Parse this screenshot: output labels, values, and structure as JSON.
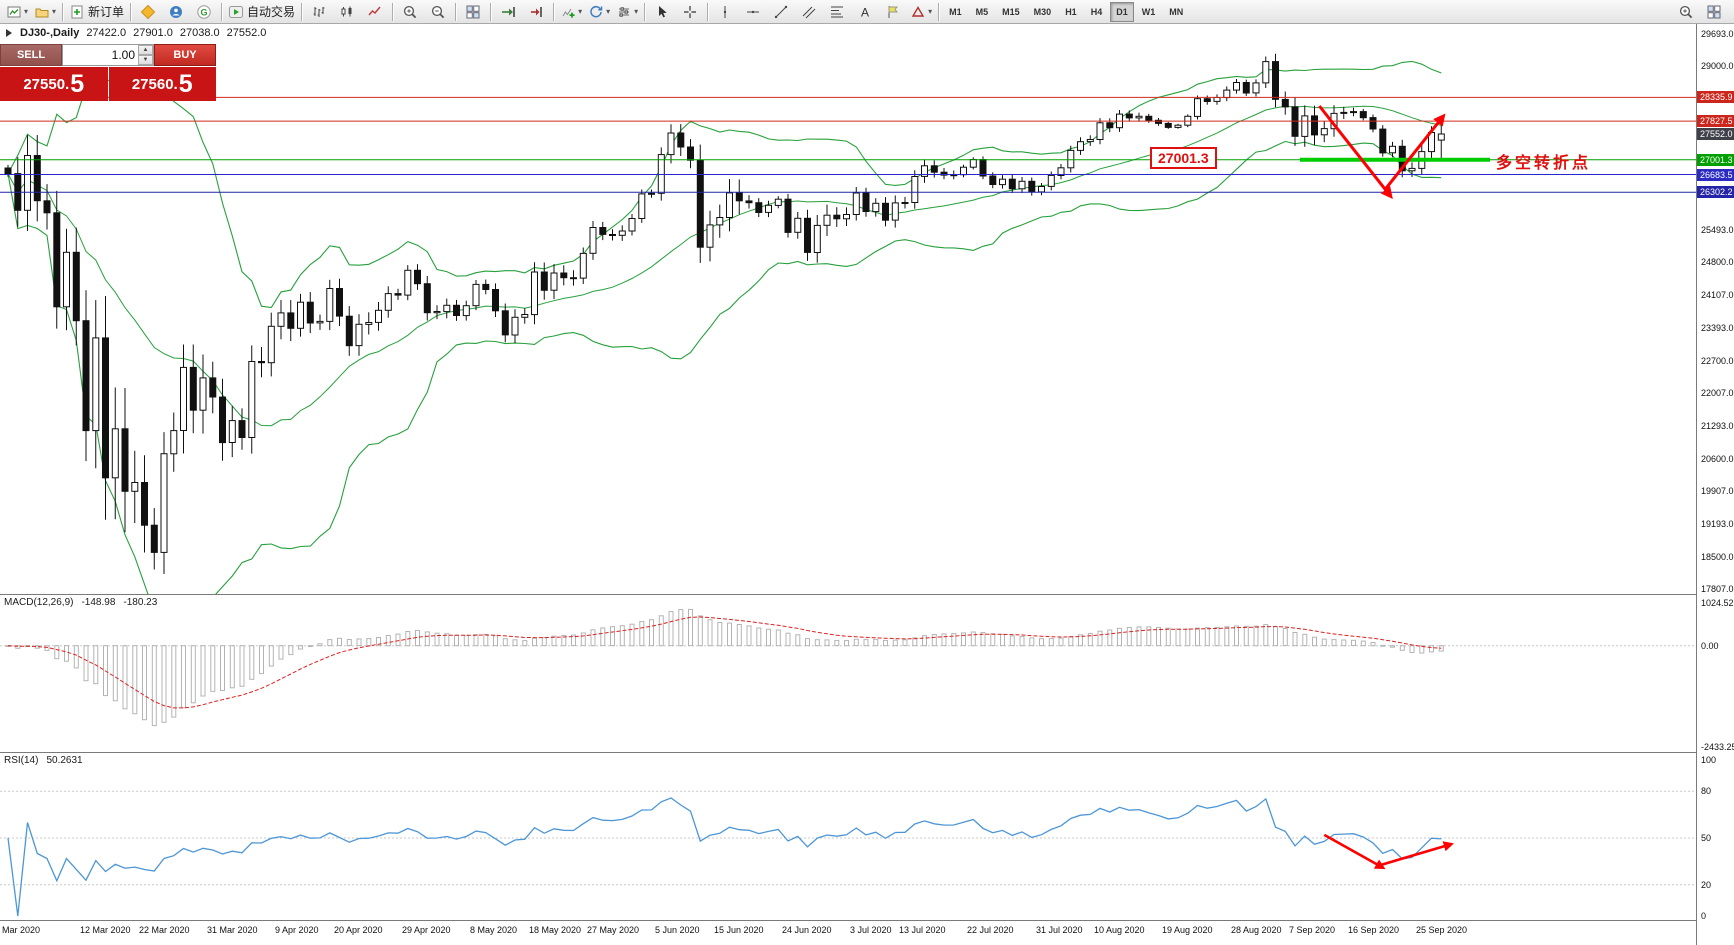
{
  "icons": {
    "caret": "▾",
    "spinner_up": "▲",
    "spinner_down": "▼"
  },
  "toolbar": {
    "timeframes": [
      "M1",
      "M5",
      "M15",
      "M30",
      "H1",
      "H4",
      "D1",
      "W1",
      "MN"
    ],
    "active_timeframe": "D1",
    "groups": [
      {
        "items": [
          {
            "name": "new-chart",
            "icon": "newchart",
            "caret": true
          },
          {
            "name": "chart-profiles",
            "icon": "profiles",
            "caret": true
          }
        ]
      },
      {
        "items": [
          {
            "name": "new-order",
            "icon": "neworder",
            "label": "新订单"
          }
        ]
      },
      {
        "items": [
          {
            "name": "market",
            "icon": "market"
          },
          {
            "name": "community",
            "icon": "community"
          },
          {
            "name": "web-search",
            "icon": "gsearch"
          }
        ]
      },
      {
        "items": [
          {
            "name": "auto-trading",
            "icon": "autotrade",
            "label": "自动交易"
          }
        ]
      },
      {
        "items": [
          {
            "name": "bar-chart-mode",
            "icon": "bars"
          },
          {
            "name": "candlestick-mode",
            "icon": "candles"
          },
          {
            "name": "line-chart-mode",
            "icon": "linechart"
          }
        ]
      },
      {
        "items": [
          {
            "name": "zoom-in",
            "icon": "zoomin"
          },
          {
            "name": "zoom-out",
            "icon": "zoomout"
          }
        ]
      },
      {
        "items": [
          {
            "name": "tile-windows",
            "icon": "tile"
          }
        ]
      },
      {
        "items": [
          {
            "name": "auto-scroll",
            "icon": "autoscroll"
          },
          {
            "name": "chart-shift",
            "icon": "shift"
          }
        ]
      },
      {
        "items": [
          {
            "name": "indicators-list",
            "icon": "indadd",
            "caret": true
          },
          {
            "name": "periods-cycles",
            "icon": "cycles",
            "caret": true
          },
          {
            "name": "chart-properties",
            "icon": "settings",
            "caret": true
          }
        ]
      },
      {
        "items": [
          {
            "name": "cursor",
            "icon": "cursor"
          },
          {
            "name": "crosshair",
            "icon": "crosshair"
          }
        ]
      },
      {
        "items": [
          {
            "name": "vertical-line",
            "icon": "vline"
          },
          {
            "name": "horizontal-line",
            "icon": "hline"
          },
          {
            "name": "trendline",
            "icon": "tline"
          },
          {
            "name": "equidistant-channel",
            "icon": "channel"
          },
          {
            "name": "fibonacci-retracement",
            "icon": "fibo"
          },
          {
            "name": "text-tool",
            "icon": "textA"
          },
          {
            "name": "text-label-tool",
            "icon": "label"
          },
          {
            "name": "arrow-tools",
            "icon": "shapes",
            "caret": true
          }
        ]
      },
      {
        "timeframes": true,
        "items": []
      },
      {
        "right": true,
        "items": [
          {
            "name": "symbol-search",
            "icon": "zoomin"
          },
          {
            "name": "window-layout",
            "icon": "tile"
          }
        ]
      }
    ]
  },
  "chart_header": {
    "symbol_period": "DJ30-,Daily",
    "open": "27422.0",
    "high": "27901.0",
    "low": "27038.0",
    "close": "27552.0"
  },
  "trade_panel": {
    "sell_label": "SELL",
    "buy_label": "BUY",
    "volume": "1.00",
    "sell_price": "27550.",
    "sell_price_big": "5",
    "buy_price": "27560.",
    "buy_price_big": "5",
    "price_bg": "#c81414"
  },
  "price_axis": {
    "ticks": [
      {
        "text": "29693.0",
        "v": 29693.0
      },
      {
        "text": "29000.0",
        "v": 29000.0
      },
      {
        "text": "25493.0",
        "v": 25493.0
      },
      {
        "text": "24800.0",
        "v": 24800.0
      },
      {
        "text": "24107.0",
        "v": 24107.0
      },
      {
        "text": "23393.0",
        "v": 23393.0
      },
      {
        "text": "22700.0",
        "v": 22700.0
      },
      {
        "text": "22007.0",
        "v": 22007.0
      },
      {
        "text": "21293.0",
        "v": 21293.0
      },
      {
        "text": "20600.0",
        "v": 20600.0
      },
      {
        "text": "19907.0",
        "v": 19907.0
      },
      {
        "text": "19193.0",
        "v": 19193.0
      },
      {
        "text": "18500.0",
        "v": 18500.0
      },
      {
        "text": "17807.0",
        "v": 17807.0
      }
    ],
    "badges": [
      {
        "text": "28335.9",
        "v": 28335.9,
        "bg": "#cc261c"
      },
      {
        "text": "27827.5",
        "v": 27827.5,
        "bg": "#cc261c"
      },
      {
        "text": "27552.0",
        "v": 27552.0,
        "bg": "#40404a"
      },
      {
        "text": "27001.3",
        "v": 27001.3,
        "bg": "#00a000"
      },
      {
        "text": "26683.5",
        "v": 26683.5,
        "bg": "#2b2bc4"
      },
      {
        "text": "26302.2",
        "v": 26302.2,
        "bg": "#2424a8"
      }
    ]
  },
  "macd": {
    "title": "MACD(12,26,9)",
    "value_main": "-148.98",
    "value_signal": "-180.23",
    "params": {
      "fast": 12,
      "slow": 26,
      "signal": 9
    },
    "axis": [
      {
        "text": "1024.52",
        "v": 1024.52
      },
      {
        "text": "0.00",
        "v": 0
      },
      {
        "text": "-2433.25",
        "v": -2433.25
      }
    ]
  },
  "rsi": {
    "title": "RSI(14)",
    "value": "50.2631",
    "period": 14,
    "levels": [
      80,
      50,
      20
    ],
    "axis": [
      {
        "text": "100",
        "v": 100
      },
      {
        "text": "80",
        "v": 80
      },
      {
        "text": "50",
        "v": 50
      },
      {
        "text": "20",
        "v": 20
      },
      {
        "text": "0",
        "v": 0
      }
    ]
  },
  "annotations": {
    "level_label": "27001.3",
    "turning_text": "多空转折点",
    "arrow_color": "#ff0000",
    "thick_segment": {
      "price": 27001.3,
      "i1": 132.5,
      "i2": 152,
      "color": "#00cc00"
    },
    "main_arrows": [
      [
        [
          134.5,
          28150
        ],
        [
          141.8,
          26220
        ]
      ],
      [
        [
          141.3,
          26380
        ],
        [
          147.2,
          27930
        ]
      ]
    ],
    "rsi_arrows": [
      [
        [
          135,
          52
        ],
        [
          141,
          31
        ]
      ],
      [
        [
          140.4,
          32
        ],
        [
          148,
          46
        ]
      ]
    ]
  },
  "colors": {
    "bands": "#27a03c",
    "candle": "#111111",
    "macd_signal": "#e02020",
    "macd_hist": "#b4b4b4",
    "rsi_line": "#4d96d6",
    "grid_dotted": "#c8c8c8"
  },
  "time_axis": [
    {
      "text": "Mar 2020",
      "i": 0
    },
    {
      "text": "12 Mar 2020",
      "i": 8
    },
    {
      "text": "22 Mar 2020",
      "i": 14
    },
    {
      "text": "31 Mar 2020",
      "i": 21
    },
    {
      "text": "9 Apr 2020",
      "i": 28
    },
    {
      "text": "20 Apr 2020",
      "i": 34
    },
    {
      "text": "29 Apr 2020",
      "i": 41
    },
    {
      "text": "8 May 2020",
      "i": 48
    },
    {
      "text": "18 May 2020",
      "i": 54
    },
    {
      "text": "27 May 2020",
      "i": 60
    },
    {
      "text": "5 Jun 2020",
      "i": 67
    },
    {
      "text": "15 Jun 2020",
      "i": 73
    },
    {
      "text": "24 Jun 2020",
      "i": 80
    },
    {
      "text": "3 Jul 2020",
      "i": 87
    },
    {
      "text": "13 Jul 2020",
      "i": 92
    },
    {
      "text": "22 Jul 2020",
      "i": 99
    },
    {
      "text": "31 Jul 2020",
      "i": 106
    },
    {
      "text": "10 Aug 2020",
      "i": 112
    },
    {
      "text": "19 Aug 2020",
      "i": 119
    },
    {
      "text": "28 Aug 2020",
      "i": 126
    },
    {
      "text": "7 Sep 2020",
      "i": 132
    },
    {
      "text": "16 Sep 2020",
      "i": 138
    },
    {
      "text": "25 Sep 2020",
      "i": 145
    }
  ],
  "chart_data": {
    "type": "candlestick",
    "symbol": "DJ30-",
    "period": "Daily",
    "visible_price_range": {
      "top": 29693.0,
      "bottom": 17807.0
    },
    "last_candle": {
      "open": 27422.0,
      "high": 27901.0,
      "low": 27038.0,
      "close": 27552.0
    },
    "levels": [
      {
        "price": 28335.9,
        "color": "#d22a1e"
      },
      {
        "price": 27827.5,
        "color": "#d22a1e"
      },
      {
        "price": 27001.3,
        "color": "#00a000"
      },
      {
        "price": 26683.5,
        "color": "#2626cc"
      },
      {
        "price": 26302.2,
        "color": "#2222aa"
      }
    ],
    "indicators": [
      "Bollinger Bands(20,2)",
      "MACD(12,26,9)",
      "RSI(14)"
    ],
    "closes": [
      26703,
      25917,
      27090,
      26121,
      25864,
      23851,
      25018,
      23553,
      21200,
      23185,
      20188,
      21237,
      19898,
      20087,
      19173,
      18591,
      20704,
      21200,
      22552,
      21636,
      22327,
      21917,
      20943,
      21413,
      21052,
      22679,
      22653,
      23433,
      23719,
      23390,
      23949,
      23504,
      23537,
      24242,
      23650,
      23018,
      23475,
      23515,
      23775,
      24133,
      24101,
      24633,
      24345,
      23723,
      23749,
      23883,
      23664,
      23875,
      24331,
      24221,
      23764,
      23247,
      23625,
      23685,
      24597,
      24206,
      24575,
      24474,
      24465,
      24995,
      25548,
      25400,
      25383,
      25475,
      25742,
      26269,
      26281,
      27110,
      27572,
      27272,
      26989,
      25128,
      25605,
      25763,
      26289,
      26119,
      26080,
      25871,
      26024,
      26156,
      25445,
      25745,
      25015,
      25595,
      25812,
      25734,
      25827,
      26287,
      25890,
      26067,
      25706,
      26075,
      26085,
      26642,
      26870,
      26734,
      26671,
      26680,
      26840,
      27005,
      26652,
      26469,
      26584,
      26379,
      26539,
      26313,
      26428,
      26664,
      26828,
      27201,
      27387,
      27433,
      27791,
      27686,
      27977,
      27896,
      27931,
      27844,
      27778,
      27693,
      27740,
      27930,
      28308,
      28248,
      28332,
      28492,
      28654,
      28430,
      28645,
      29101,
      28293,
      28133,
      27501,
      27940,
      27534,
      27666,
      27993,
      28015,
      28032,
      27902,
      27657,
      27148,
      27288,
      26763,
      26815,
      27174,
      27584,
      27552
    ]
  }
}
